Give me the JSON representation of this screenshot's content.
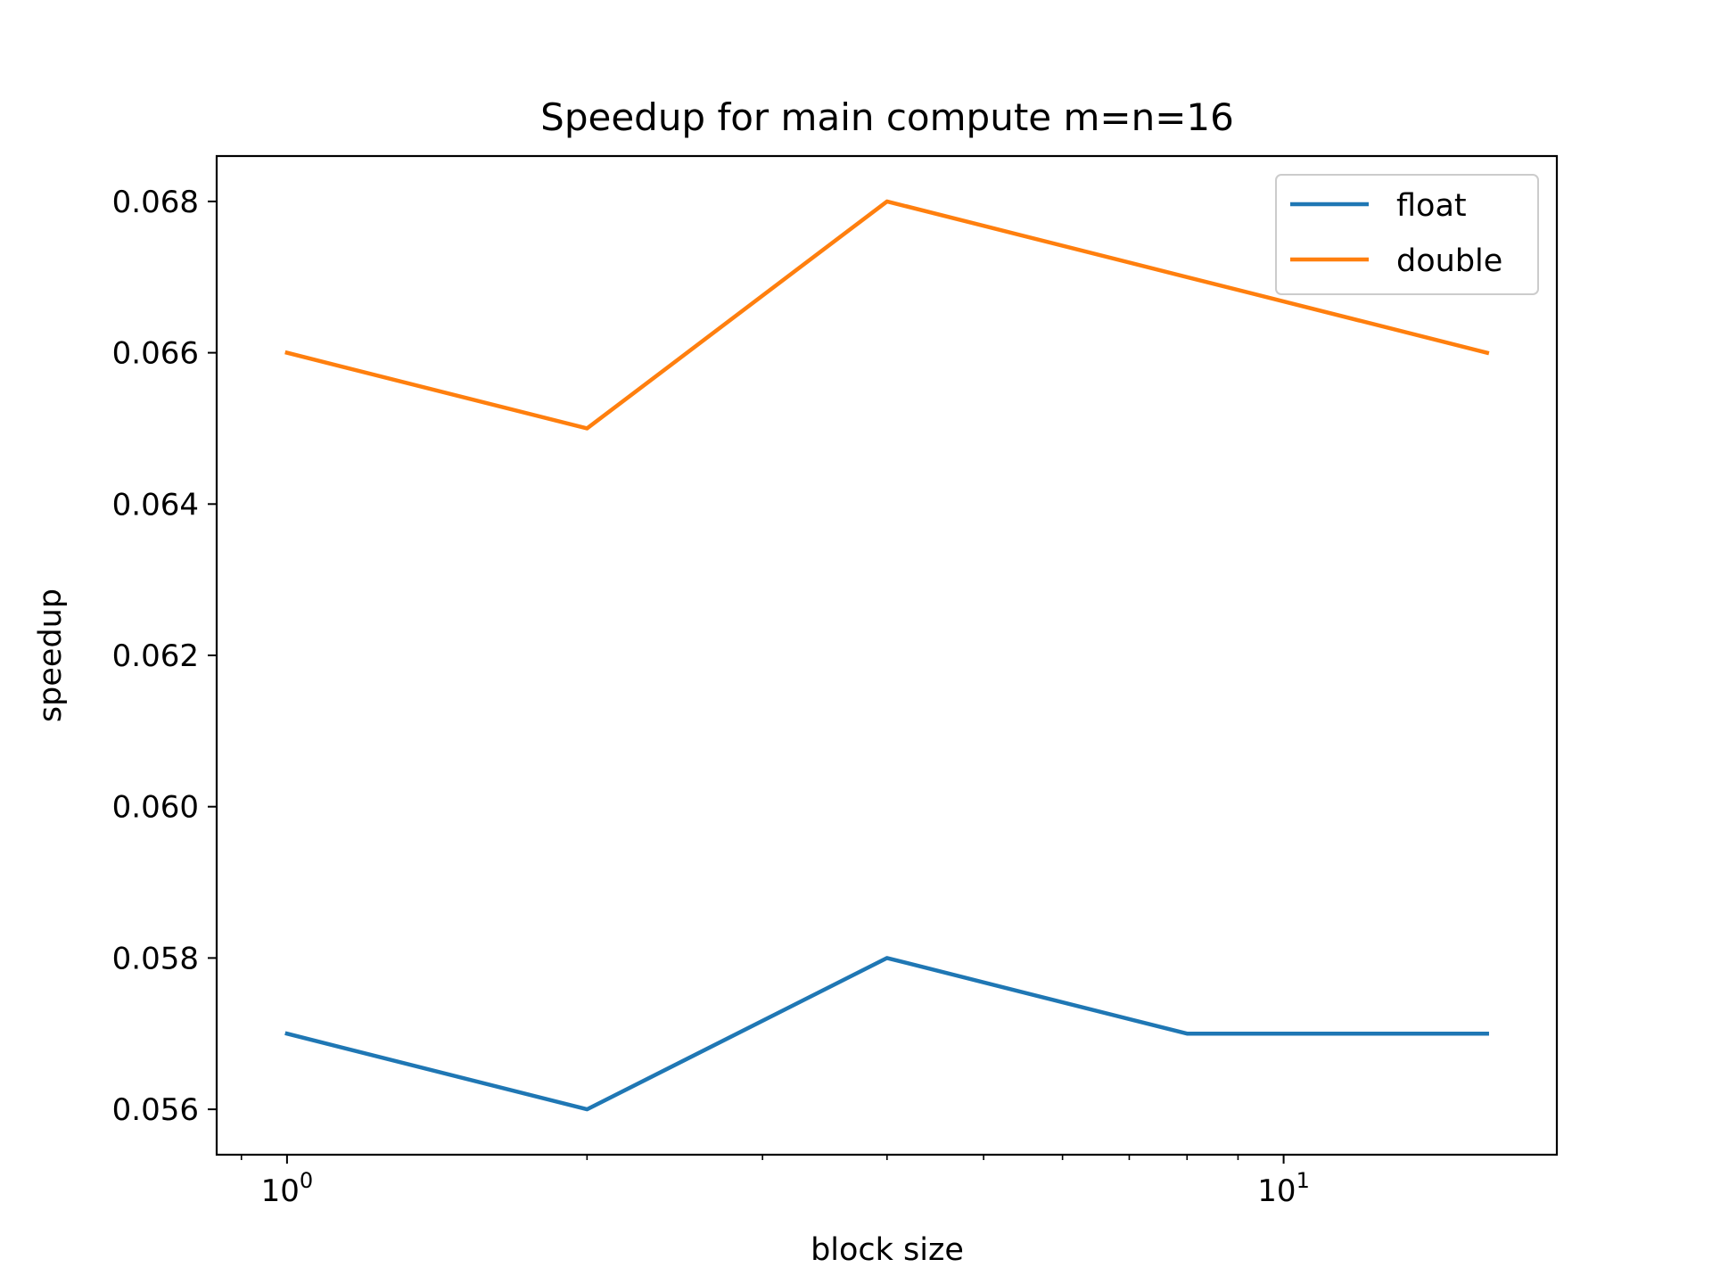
{
  "chart_data": {
    "type": "line",
    "title": "Speedup for main compute m=n=16",
    "xlabel": "block size",
    "ylabel": "speedup",
    "xscale": "log",
    "xlim": [
      0.85,
      18.8
    ],
    "ylim": [
      0.0554,
      0.0686
    ],
    "x": [
      1,
      2,
      4,
      8,
      16
    ],
    "series": [
      {
        "name": "float",
        "color": "#1f77b4",
        "values": [
          0.057,
          0.056,
          0.058,
          0.057,
          0.057
        ]
      },
      {
        "name": "double",
        "color": "#ff7f0e",
        "values": [
          0.066,
          0.065,
          0.068,
          0.067,
          0.066
        ]
      }
    ],
    "yticks": [
      0.056,
      0.058,
      0.06,
      0.062,
      0.064,
      0.066,
      0.068
    ],
    "ytick_labels": [
      "0.056",
      "0.058",
      "0.060",
      "0.062",
      "0.064",
      "0.066",
      "0.068"
    ],
    "xticks_major": [
      1,
      10
    ],
    "xtick_labels": [
      {
        "base": "10",
        "exp": "0"
      },
      {
        "base": "10",
        "exp": "1"
      }
    ],
    "xticks_minor": [
      2,
      3,
      4,
      5,
      6,
      7,
      8,
      9,
      20
    ],
    "grid": false,
    "legend": "top-right"
  }
}
